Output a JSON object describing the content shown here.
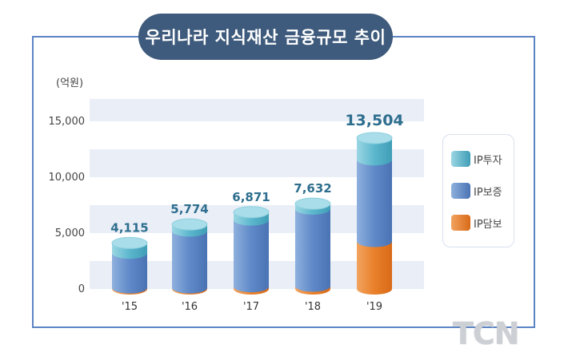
{
  "chart_data": {
    "type": "bar",
    "title": "우리나라 지식재산 금융규모 추이",
    "unit_label": "(억원)",
    "categories": [
      "'15",
      "'16",
      "'17",
      "'18",
      "'19"
    ],
    "totals_labels": [
      "4,115",
      "5,774",
      "6,871",
      "7,632",
      "13,504"
    ],
    "series": [
      {
        "name": "IP담보",
        "values": [
          100,
          100,
          200,
          250,
          4250
        ]
      },
      {
        "name": "IP보증",
        "values": [
          3100,
          5080,
          5970,
          6900,
          7300
        ]
      },
      {
        "name": "IP투자",
        "values": [
          915,
          594,
          701,
          482,
          1954
        ]
      }
    ],
    "series_colors": {
      "IP담보": "#ee8a3c",
      "IP보증": "#6d94cf",
      "IP투자": "#6cc0d3"
    },
    "y_ticks": [
      "0",
      "5,000",
      "10,000",
      "15,000"
    ],
    "ylim": [
      0,
      17000
    ],
    "legend_position": "right",
    "accent_color": "#2e6e8e"
  },
  "watermark": "TCN"
}
